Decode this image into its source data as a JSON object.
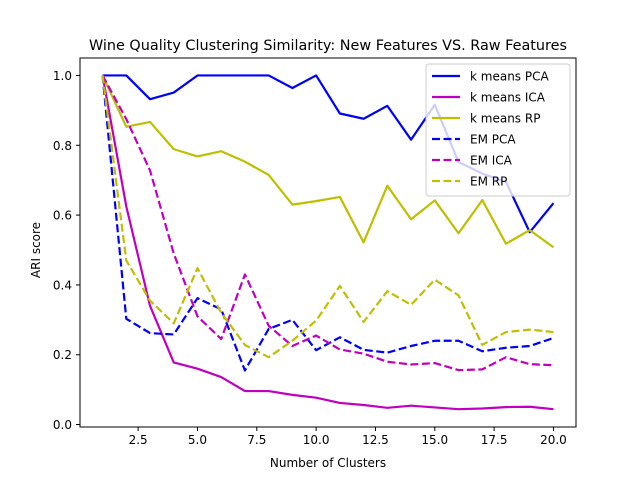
{
  "chart_data": {
    "type": "line",
    "title": "Wine Quality Clustering Similarity: New Features VS. Raw Features",
    "xlabel": "Number of Clusters",
    "ylabel": "ARI score",
    "xlim": [
      0.05,
      20.95
    ],
    "ylim": [
      -0.007,
      1.05
    ],
    "xticks": [
      2.5,
      5.0,
      7.5,
      10.0,
      12.5,
      15.0,
      17.5,
      20.0
    ],
    "xtick_labels": [
      "2.5",
      "5.0",
      "7.5",
      "10.0",
      "12.5",
      "15.0",
      "17.5",
      "20.0"
    ],
    "yticks": [
      0.0,
      0.2,
      0.4,
      0.6,
      0.8,
      1.0
    ],
    "ytick_labels": [
      "0.0",
      "0.2",
      "0.4",
      "0.6",
      "0.8",
      "1.0"
    ],
    "grid": false,
    "legend_position": "top-right",
    "x": [
      1,
      2,
      3,
      4,
      5,
      6,
      7,
      8,
      9,
      10,
      11,
      12,
      13,
      14,
      15,
      16,
      17,
      18,
      19,
      20
    ],
    "series": [
      {
        "name": "k means PCA",
        "color": "#0000ff",
        "dash": "solid",
        "values": [
          1.0,
          1.0,
          0.932,
          0.951,
          1.0,
          1.0,
          1.0,
          1.0,
          0.964,
          1.0,
          0.891,
          0.876,
          0.913,
          0.816,
          0.916,
          0.752,
          0.719,
          0.695,
          0.551,
          0.634
        ]
      },
      {
        "name": "k means ICA",
        "color": "#bf00bf",
        "dash": "solid",
        "values": [
          1.0,
          0.625,
          0.34,
          0.178,
          0.16,
          0.136,
          0.096,
          0.096,
          0.085,
          0.077,
          0.062,
          0.056,
          0.048,
          0.054,
          0.049,
          0.044,
          0.046,
          0.05,
          0.051,
          0.044
        ]
      },
      {
        "name": "k means RP",
        "color": "#bfbf00",
        "dash": "solid",
        "values": [
          1.0,
          0.853,
          0.867,
          0.789,
          0.768,
          0.783,
          0.753,
          0.715,
          0.63,
          0.64,
          0.652,
          0.522,
          0.684,
          0.588,
          0.642,
          0.548,
          0.643,
          0.518,
          0.557,
          0.508
        ]
      },
      {
        "name": "EM PCA",
        "color": "#0000ff",
        "dash": "dashed",
        "values": [
          1.0,
          0.303,
          0.262,
          0.258,
          0.362,
          0.33,
          0.155,
          0.274,
          0.3,
          0.213,
          0.25,
          0.214,
          0.206,
          0.225,
          0.24,
          0.24,
          0.21,
          0.22,
          0.225,
          0.248
        ]
      },
      {
        "name": "EM ICA",
        "color": "#bf00bf",
        "dash": "dashed",
        "values": [
          1.0,
          0.875,
          0.728,
          0.49,
          0.31,
          0.245,
          0.43,
          0.283,
          0.225,
          0.255,
          0.215,
          0.203,
          0.18,
          0.172,
          0.176,
          0.156,
          0.158,
          0.193,
          0.173,
          0.17
        ]
      },
      {
        "name": "EM RP",
        "color": "#bfbf00",
        "dash": "dashed",
        "values": [
          1.0,
          0.47,
          0.355,
          0.29,
          0.448,
          0.32,
          0.228,
          0.193,
          0.24,
          0.298,
          0.397,
          0.294,
          0.382,
          0.343,
          0.415,
          0.37,
          0.228,
          0.265,
          0.272,
          0.265
        ]
      }
    ]
  }
}
